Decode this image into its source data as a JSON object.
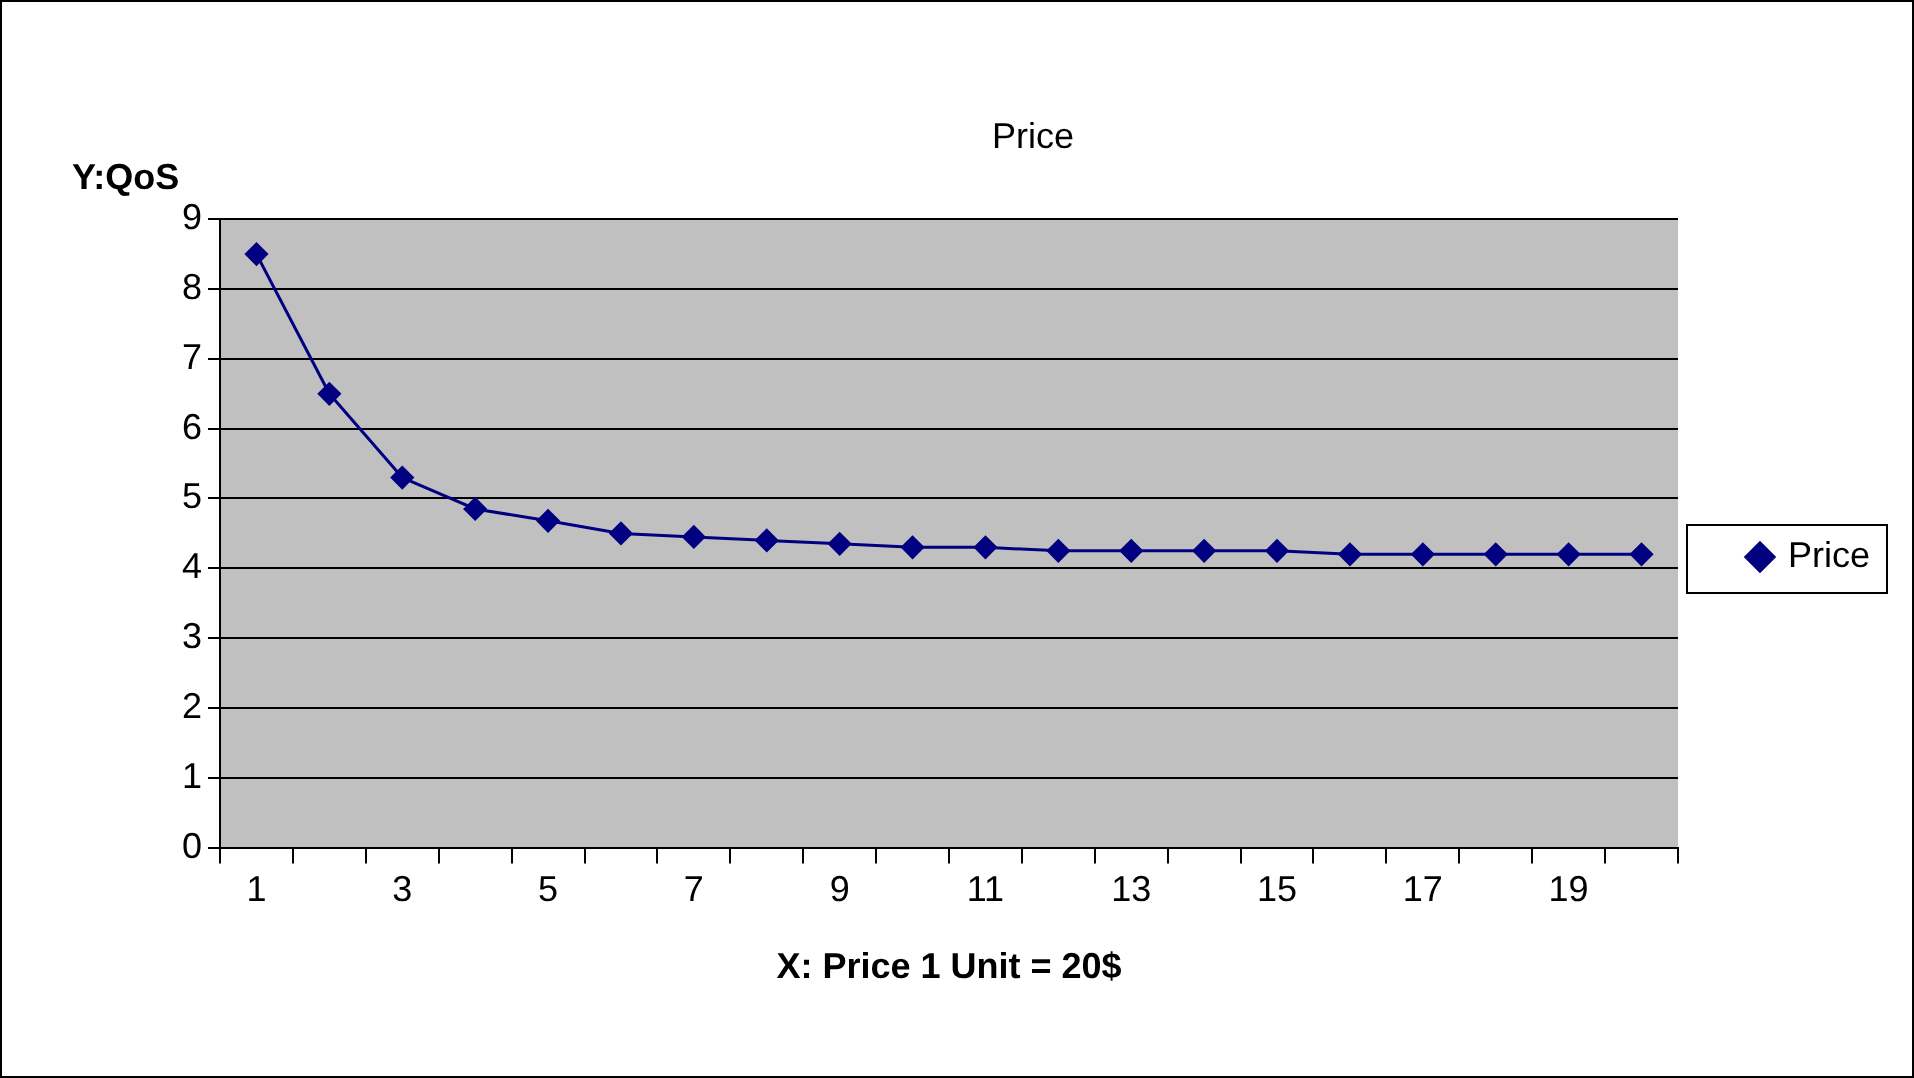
{
  "chart_data": {
    "type": "line",
    "title": "Price",
    "xlabel": "X: Price 1 Unit = 20$",
    "ylabel": "Y:QoS",
    "x": [
      1,
      2,
      3,
      4,
      5,
      6,
      7,
      8,
      9,
      10,
      11,
      12,
      13,
      14,
      15,
      16,
      17,
      18,
      19,
      20
    ],
    "xlim": [
      0.5,
      20.5
    ],
    "xticks": [
      {
        "value": 0.5,
        "label": null
      },
      1,
      {
        "value": 1.5,
        "label": null
      },
      {
        "value": 2.5,
        "label": null
      },
      3,
      {
        "value": 3.5,
        "label": null
      },
      {
        "value": 4.5,
        "label": null
      },
      5,
      {
        "value": 5.5,
        "label": null
      },
      {
        "value": 6.5,
        "label": null
      },
      7,
      {
        "value": 7.5,
        "label": null
      },
      {
        "value": 8.5,
        "label": null
      },
      9,
      {
        "value": 9.5,
        "label": null
      },
      {
        "value": 10.5,
        "label": null
      },
      11,
      {
        "value": 11.5,
        "label": null
      },
      {
        "value": 12.5,
        "label": null
      },
      13,
      {
        "value": 13.5,
        "label": null
      },
      {
        "value": 14.5,
        "label": null
      },
      15,
      {
        "value": 15.5,
        "label": null
      },
      {
        "value": 16.5,
        "label": null
      },
      17,
      {
        "value": 17.5,
        "label": null
      },
      {
        "value": 18.5,
        "label": null
      },
      19,
      {
        "value": 19.5,
        "label": null
      },
      {
        "value": 20.5,
        "label": null
      }
    ],
    "series": [
      {
        "name": "Price",
        "color": "#000080",
        "values": [
          8.5,
          6.5,
          5.3,
          4.85,
          4.68,
          4.5,
          4.45,
          4.4,
          4.35,
          4.3,
          4.3,
          4.25,
          4.25,
          4.25,
          4.25,
          4.2,
          4.2,
          4.2,
          4.2,
          4.2
        ]
      }
    ],
    "ylim": [
      0,
      9
    ],
    "yticks": [
      0,
      1,
      2,
      3,
      4,
      5,
      6,
      7,
      8,
      9
    ],
    "grid": "y",
    "legend": "right",
    "marker": "diamond",
    "line_style": "solid"
  }
}
